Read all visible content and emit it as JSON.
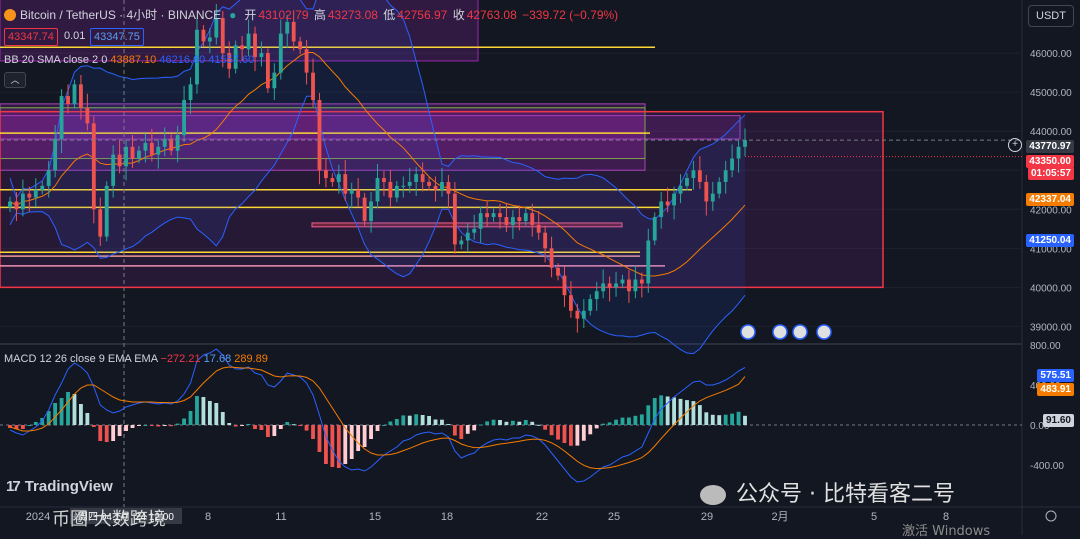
{
  "header": {
    "symbol": "Bitcoin / TetherUS · 4小时 · BINANCE",
    "open_label": "开",
    "open": "43102.79",
    "high_label": "高",
    "high": "43273.08",
    "low_label": "低",
    "low": "42756.97",
    "close_label": "收",
    "close": "42763.08",
    "change": "−339.72 (−0.79%)",
    "bid": "43347.74",
    "spread": "0.01",
    "ask": "43347.75"
  },
  "indicators": {
    "bb_label": "BB 20 SMA close 2 0",
    "bb_values": [
      "43887.10",
      "46216.60",
      "41557.60"
    ],
    "macd_label": "MACD 12 26 close 9 EMA EMA",
    "macd_values": [
      "−272.21",
      "17.68",
      "289.89"
    ]
  },
  "currency_button": "USDT",
  "price_tags": {
    "crosshair": "43770.97",
    "current": "43350.00",
    "countdown": "01:05:57",
    "bb_upper": "42337.04",
    "bb_lower": "41250.04"
  },
  "macd_tags": [
    "575.51",
    "483.91",
    "91.60"
  ],
  "branding": {
    "logo": "TradingView",
    "watermark": "公众号 · 比特看客二号",
    "watermark2": "币圈 大数跨境",
    "windows": "激活 Windows"
  },
  "colors": {
    "bg": "#131722",
    "up": "#26a69a",
    "down": "#ef5350",
    "bb": "#2962ff",
    "basis": "#f57c00",
    "zone": "#9c27b0",
    "box": "#f23645"
  },
  "chart_data": [
    {
      "type": "candlestick",
      "title": "Bitcoin / TetherUS · 4小时 · BINANCE",
      "ylim": [
        38600,
        46900
      ],
      "y_ticks": [
        39000,
        40000,
        41000,
        42000,
        43000,
        44000,
        45000,
        46000
      ],
      "y_tick_labels": [
        "39000.00",
        "40000.00",
        "41000.00",
        "42000.00",
        "43000.00",
        "44000.00",
        "45000.00",
        "46000.00"
      ],
      "x_ticks": [
        "2024",
        "4",
        "8",
        "11",
        "15",
        "18",
        "22",
        "25",
        "29",
        "2月",
        "5",
        "8"
      ],
      "crosshair_x_label": "周四 04 1月 '24  12:00",
      "series": [
        {
          "name": "BTC",
          "close": [
            42200,
            42000,
            42400,
            42300,
            42500,
            42600,
            43000,
            43800,
            44900,
            44700,
            45200,
            44600,
            44200,
            42000,
            41300,
            42600,
            43400,
            43100,
            43600,
            43300,
            43500,
            43700,
            43400,
            43600,
            43800,
            43500,
            43900,
            44800,
            45200,
            46600,
            46300,
            46400,
            46900,
            46000,
            45600,
            46200,
            46100,
            46500,
            45900,
            46000,
            45100,
            45500,
            46500,
            46800,
            46300,
            46100,
            45500,
            44800,
            43000,
            42800,
            42700,
            42900,
            42400,
            42500,
            42300,
            41700,
            42200,
            42800,
            42700,
            42300,
            42600,
            42600,
            42700,
            42900,
            42700,
            42600,
            42500,
            42700,
            42400,
            41100,
            41200,
            41400,
            41500,
            41900,
            41800,
            41900,
            41800,
            41600,
            41800,
            41700,
            41900,
            41600,
            41400,
            41000,
            40500,
            40300,
            39800,
            39400,
            39200,
            39400,
            39700,
            39900,
            40100,
            40000,
            40100,
            40200,
            39900,
            40200,
            40100,
            41200,
            41800,
            42200,
            42100,
            42400,
            42600,
            42800,
            43000,
            42700,
            42200,
            42400,
            42700,
            43000,
            43300,
            43600,
            43770
          ]
        }
      ]
    },
    {
      "type": "line",
      "title": "MACD 12 26 close 9 EMA EMA",
      "ylim": [
        -800,
        800
      ],
      "y_ticks": [
        -400,
        0,
        400,
        800
      ],
      "y_tick_labels": [
        "-400.00",
        "0.00",
        "400.00",
        "800.00"
      ],
      "series": [
        {
          "name": "MACD",
          "values": [
            -50,
            -80,
            -100,
            -60,
            -20,
            40,
            150,
            300,
            420,
            560,
            620,
            580,
            520,
            380,
            200,
            150,
            120,
            140,
            180,
            200,
            220,
            230,
            220,
            210,
            220,
            210,
            240,
            310,
            420,
            640,
            700,
            720,
            760,
            700,
            600,
            560,
            560,
            580,
            520,
            500,
            400,
            380,
            440,
            520,
            500,
            480,
            420,
            300,
            100,
            -120,
            -250,
            -360,
            -420,
            -450,
            -440,
            -460,
            -420,
            -360,
            -300,
            -260,
            -220,
            -160,
            -140,
            -100,
            -80,
            -70,
            -90,
            -80,
            -120,
            -260,
            -330,
            -300,
            -280,
            -220,
            -180,
            -150,
            -140,
            -150,
            -130,
            -130,
            -100,
            -110,
            -140,
            -200,
            -280,
            -360,
            -440,
            -520,
            -570,
            -560,
            -520,
            -470,
            -420,
            -400,
            -360,
            -320,
            -300,
            -260,
            -220,
            -80,
            60,
            160,
            220,
            280,
            330,
            380,
            430,
            440,
            400,
            400,
            420,
            450,
            490,
            540,
            575
          ]
        },
        {
          "name": "Signal",
          "values": [
            -20,
            -40,
            -60,
            -60,
            -50,
            -30,
            10,
            80,
            150,
            230,
            310,
            370,
            400,
            400,
            360,
            320,
            280,
            250,
            240,
            230,
            230,
            230,
            230,
            225,
            225,
            222,
            226,
            245,
            280,
            350,
            420,
            480,
            540,
            570,
            580,
            575,
            570,
            570,
            560,
            550,
            520,
            490,
            480,
            490,
            492,
            490,
            476,
            440,
            370,
            270,
            170,
            70,
            -30,
            -110,
            -180,
            -240,
            -280,
            -300,
            -300,
            -295,
            -280,
            -256,
            -233,
            -207,
            -180,
            -160,
            -145,
            -133,
            -130,
            -155,
            -190,
            -212,
            -226,
            -225,
            -216,
            -203,
            -190,
            -182,
            -172,
            -163,
            -150,
            -142,
            -142,
            -153,
            -178,
            -214,
            -260,
            -312,
            -364,
            -403,
            -427,
            -436,
            -433,
            -426,
            -413,
            -394,
            -375,
            -352,
            -326,
            -277,
            -210,
            -136,
            -65,
            4,
            69,
            131,
            191,
            241,
            273,
            298,
            322,
            347,
            376,
            408,
            484
          ]
        },
        {
          "name": "Histogram",
          "values": [
            -30,
            -40,
            -40,
            0,
            30,
            70,
            140,
            220,
            270,
            330,
            310,
            210,
            120,
            -20,
            -160,
            -170,
            -160,
            -110,
            -60,
            -30,
            -10,
            0,
            -10,
            -15,
            -5,
            -12,
            14,
            65,
            140,
            290,
            280,
            240,
            220,
            130,
            20,
            -15,
            -10,
            10,
            -40,
            -50,
            -120,
            -110,
            -40,
            30,
            8,
            -10,
            -56,
            -140,
            -270,
            -390,
            -420,
            -430,
            -390,
            -340,
            -260,
            -220,
            -140,
            -60,
            0,
            35,
            60,
            96,
            93,
            107,
            100,
            90,
            55,
            53,
            10,
            -105,
            -140,
            -88,
            -54,
            5,
            36,
            53,
            50,
            32,
            42,
            33,
            50,
            32,
            2,
            -47,
            -102,
            -146,
            -180,
            -208,
            -206,
            -157,
            -93,
            -34,
            13,
            26,
            53,
            74,
            75,
            92,
            106,
            197,
            270,
            296,
            285,
            276,
            261,
            249,
            239,
            199,
            127,
            102,
            98,
            103,
            114,
            132,
            92
          ]
        }
      ]
    }
  ]
}
